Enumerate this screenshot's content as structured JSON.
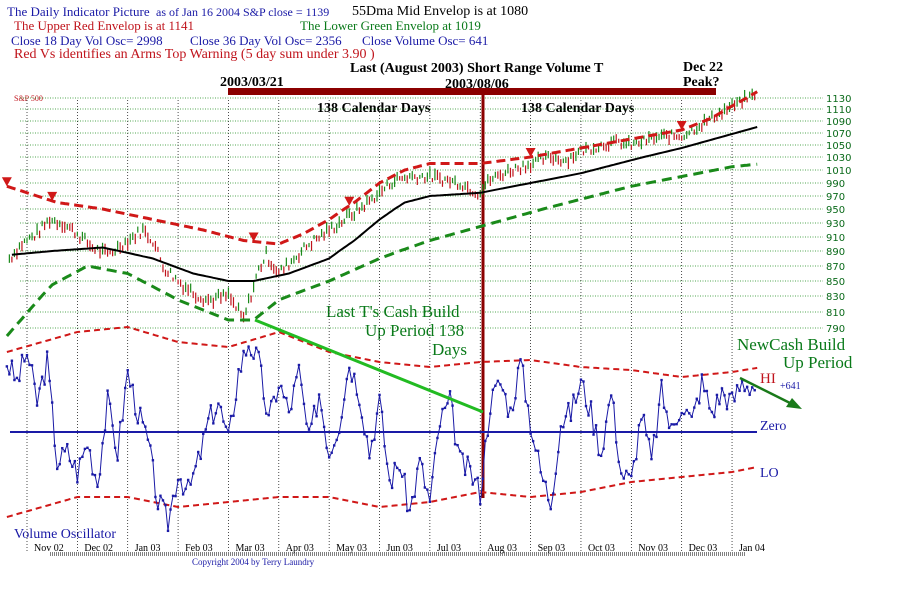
{
  "header": {
    "title": "The Daily Indicator Picture",
    "asof": "as of Jan 16  2004  S&P close = 1139",
    "mid_env": "55Dma  Mid Envelop is at 1080",
    "upper_env": "The  Upper Red Envelop is at  1141",
    "lower_env": "The Lower Green Envelop at  1019",
    "osc18": "Close 18 Day Vol Osc=  2998",
    "osc36": "Close 36 Day Vol Osc=  2356",
    "osc_close": "Close Volume Osc=  641",
    "warning": "Red Vs identifies an  Arms Top Warning (5 day sum under 3.90 )"
  },
  "annotations": {
    "last_thrust": "Last (August 2003) Short Range Volume T",
    "date1": "2003/03/21",
    "date2": "2003/08/06",
    "dec22": "Dec 22",
    "peak": "Peak?",
    "days1": "138 Calendar Days",
    "days2": "138 Calendar Days",
    "cash1": "Last T's Cash Build",
    "cash2": "Up Period 138",
    "cash3": "Days",
    "newcash1": "NewCash Build",
    "newcash2": "Up Period",
    "hi": "HI",
    "hi_val": "+641",
    "zero": "Zero",
    "lo": "LO",
    "copyright": "Copyright 2004 by Terry Laundry"
  },
  "colors": {
    "price_up": "#1a8a1a",
    "price_down": "#c0141c",
    "upper": "#d01818",
    "mid": "#000000",
    "lower": "#1a8a1a",
    "osc": "#1a1aa6",
    "bar": "#8b0000"
  },
  "chart_data": [
    {
      "type": "line",
      "title": "S&P 500",
      "x_unit": "months since Nov 2002",
      "categories": [
        "Nov 02",
        "Dec 02",
        "Jan 03",
        "Feb 03",
        "Mar 03",
        "Apr 03",
        "May 03",
        "Jun 03",
        "Jul 03",
        "Aug 03",
        "Sep 03",
        "Oct 03",
        "Nov 03",
        "Dec 03",
        "Jan 04"
      ],
      "yticks": [
        1130,
        1110,
        1090,
        1070,
        1050,
        1030,
        1010,
        990,
        970,
        950,
        930,
        910,
        890,
        870,
        850,
        830,
        810,
        790
      ],
      "series": [
        {
          "name": "S&P 500",
          "x": [
            -0.35,
            -0.1,
            0.2,
            0.45,
            0.7,
            1.0,
            1.3,
            1.6,
            2.0,
            2.3,
            2.5,
            2.7,
            3.0,
            3.3,
            3.6,
            4.0,
            4.3,
            4.6,
            4.75,
            5.0,
            5.3,
            5.6,
            6.0,
            6.3,
            6.6,
            7.0,
            7.3,
            7.6,
            8.0,
            8.3,
            8.6,
            8.95,
            9.2,
            9.6,
            10.0,
            10.4,
            10.7,
            11.0,
            11.4,
            11.7,
            12.0,
            12.4,
            12.7,
            13.0,
            13.4,
            13.7,
            14.0,
            14.5
          ],
          "values": [
            880,
            900,
            915,
            935,
            930,
            915,
            895,
            885,
            905,
            920,
            905,
            870,
            850,
            835,
            825,
            830,
            800,
            865,
            885,
            860,
            880,
            900,
            920,
            935,
            950,
            975,
            995,
            1000,
            1000,
            995,
            990,
            975,
            995,
            1010,
            1020,
            1030,
            1025,
            1040,
            1050,
            1055,
            1050,
            1060,
            1065,
            1065,
            1085,
            1100,
            1115,
            1139
          ]
        },
        {
          "name": "Upper Red Envelope",
          "x": [
            -0.4,
            0.6,
            1.5,
            2.5,
            3.5,
            4.3,
            5.0,
            5.5,
            6.0,
            6.5,
            7.0,
            7.5,
            8.0,
            9.0,
            10,
            11,
            12,
            13,
            13.6,
            14.5
          ],
          "values": [
            985,
            960,
            950,
            935,
            920,
            905,
            900,
            915,
            935,
            960,
            990,
            1010,
            1020,
            1020,
            1030,
            1045,
            1060,
            1075,
            1095,
            1141
          ]
        },
        {
          "name": "55Dma Mid Envelope",
          "x": [
            -0.3,
            0.5,
            1.5,
            2.5,
            3.3,
            4.0,
            4.5,
            5.2,
            6,
            6.5,
            7,
            7.5,
            8,
            9,
            10,
            11,
            12,
            13,
            14.5
          ],
          "values": [
            885,
            890,
            895,
            880,
            860,
            850,
            850,
            860,
            880,
            905,
            935,
            960,
            970,
            975,
            990,
            1005,
            1025,
            1045,
            1080
          ]
        },
        {
          "name": "Lower Green Envelope",
          "x": [
            -0.4,
            0.5,
            1.2,
            2,
            3,
            4,
            4.5,
            5,
            6,
            7,
            8,
            9,
            10,
            11,
            12,
            13,
            14,
            14.5
          ],
          "values": [
            780,
            845,
            870,
            860,
            825,
            800,
            800,
            825,
            850,
            880,
            905,
            925,
            945,
            965,
            985,
            1000,
            1015,
            1019
          ]
        }
      ],
      "arms_warnings_x": [
        -0.4,
        0.5,
        4.5,
        6.4,
        10.0,
        13.0
      ]
    },
    {
      "type": "line",
      "title": "Volume Oscillator",
      "series": [
        {
          "name": "Volume Oscillator",
          "x": [
            -0.4,
            -0.2,
            0,
            0.2,
            0.4,
            0.6,
            0.8,
            1.0,
            1.2,
            1.4,
            1.6,
            1.8,
            2.0,
            2.2,
            2.4,
            2.6,
            2.8,
            3.0,
            3.2,
            3.4,
            3.6,
            3.8,
            4.0,
            4.2,
            4.4,
            4.6,
            4.8,
            5.0,
            5.2,
            5.4,
            5.6,
            5.8,
            6.0,
            6.2,
            6.4,
            6.6,
            6.8,
            7.0,
            7.2,
            7.4,
            7.6,
            7.8,
            8.0,
            8.2,
            8.4,
            8.6,
            8.8,
            9.0,
            9.2,
            9.4,
            9.6,
            9.8,
            10.0,
            10.2,
            10.4,
            10.6,
            10.8,
            11.0,
            11.2,
            11.4,
            11.6,
            11.8,
            12.0,
            12.2,
            12.4,
            12.6,
            12.8,
            13.0,
            13.2,
            13.4,
            13.6,
            13.8,
            14.0,
            14.2,
            14.5
          ],
          "values": [
            700,
            500,
            800,
            300,
            700,
            -300,
            -200,
            -400,
            -100,
            -500,
            300,
            -200,
            600,
            200,
            -100,
            -700,
            -900,
            -400,
            -600,
            -300,
            100,
            300,
            -100,
            600,
            900,
            700,
            100,
            500,
            200,
            600,
            -100,
            400,
            -200,
            100,
            700,
            400,
            -200,
            300,
            -500,
            -300,
            -800,
            -300,
            -700,
            100,
            300,
            -300,
            -400,
            -600,
            300,
            500,
            200,
            700,
            100,
            -400,
            -700,
            100,
            200,
            500,
            200,
            -200,
            400,
            -400,
            -500,
            200,
            -300,
            400,
            0,
            300,
            100,
            500,
            200,
            400,
            300,
            500,
            450
          ]
        },
        {
          "name": "HI",
          "x": [
            -0.4,
            1,
            2,
            3,
            4,
            5,
            6,
            7,
            8,
            9,
            10,
            11,
            12,
            13,
            14,
            14.5
          ],
          "values": [
            800,
            1000,
            1050,
            900,
            850,
            1000,
            800,
            700,
            650,
            700,
            720,
            650,
            620,
            550,
            600,
            641
          ]
        },
        {
          "name": "LO",
          "x": [
            -0.4,
            1,
            2,
            3,
            4,
            5,
            6,
            7,
            8,
            9,
            10,
            11,
            12,
            13,
            14,
            14.5
          ],
          "values": [
            -850,
            -650,
            -650,
            -750,
            -700,
            -650,
            -650,
            -750,
            -700,
            -600,
            -650,
            -600,
            -500,
            -450,
            -400,
            -350
          ]
        }
      ]
    }
  ]
}
